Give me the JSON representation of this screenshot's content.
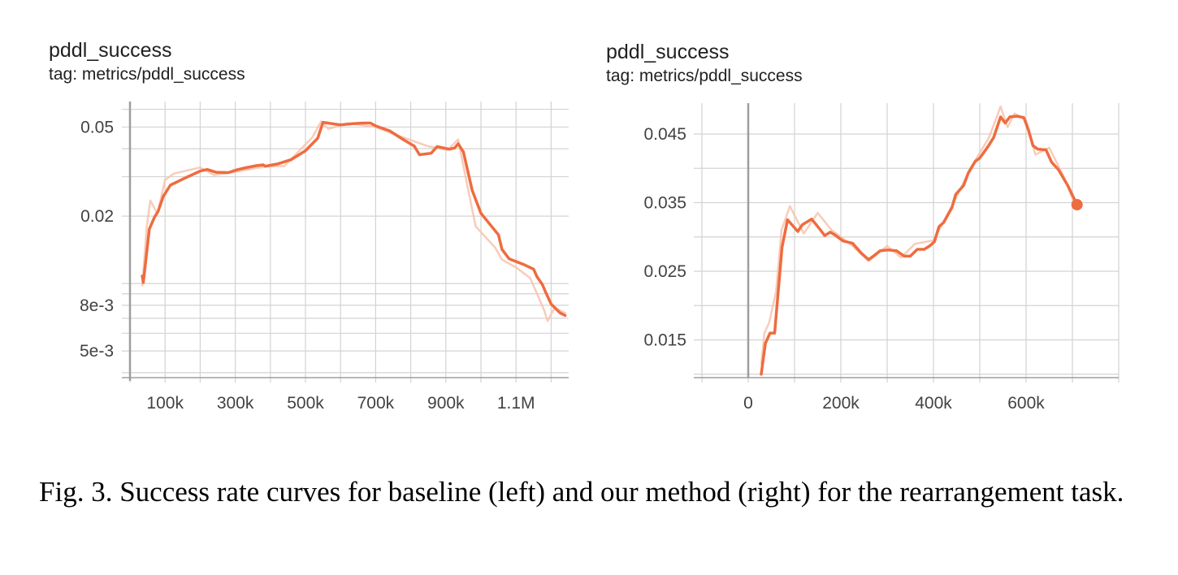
{
  "colors": {
    "line": "#ee6c3f",
    "line_raw": "#f7c3ad",
    "grid": "#d3d3d3",
    "axis": "#9e9e9e",
    "text": "#212121"
  },
  "caption": "Fig. 3.  Success rate curves for baseline (left) and our method (right) for the rearrangement task.",
  "chart_data": [
    {
      "type": "line",
      "title": "pddl_success",
      "subtitle": "tag: metrics/pddl_success",
      "xlabel": "",
      "ylabel": "",
      "y_scale": "log",
      "xlim": [
        0,
        1250000
      ],
      "ylim": [
        0.0038,
        0.065
      ],
      "x_ticks": [
        100000,
        300000,
        500000,
        700000,
        900000,
        1100000
      ],
      "x_tick_labels": [
        "100k",
        "300k",
        "500k",
        "700k",
        "900k",
        "1.1M"
      ],
      "y_ticks": [
        0.05,
        0.02,
        0.008,
        0.005
      ],
      "y_tick_labels": [
        "0.05",
        "0.02",
        "8e-3",
        "5e-3"
      ],
      "grid": true,
      "series": [
        {
          "role": "smoothed",
          "x": [
            35000,
            38000,
            55000,
            70000,
            80000,
            95000,
            115000,
            155000,
            200000,
            220000,
            245000,
            280000,
            305000,
            330000,
            360000,
            380000,
            385000,
            420000,
            460000,
            500000,
            535000,
            550000,
            600000,
            635000,
            665000,
            685000,
            700000,
            740000,
            775000,
            810000,
            825000,
            858000,
            875000,
            910000,
            925000,
            935000,
            950000,
            975000,
            1000000,
            1050000,
            1060000,
            1080000,
            1125000,
            1150000,
            1160000,
            1175000,
            1185000,
            1200000,
            1225000,
            1240000
          ],
          "y": [
            0.0108,
            0.0101,
            0.0175,
            0.0198,
            0.021,
            0.0245,
            0.0275,
            0.0295,
            0.0318,
            0.0323,
            0.0314,
            0.0313,
            0.0322,
            0.0329,
            0.0336,
            0.0339,
            0.0334,
            0.0342,
            0.0358,
            0.0392,
            0.0446,
            0.0525,
            0.0511,
            0.0518,
            0.0521,
            0.0521,
            0.0506,
            0.0481,
            0.0443,
            0.0411,
            0.0376,
            0.0382,
            0.0409,
            0.0398,
            0.0403,
            0.0421,
            0.0387,
            0.0261,
            0.0206,
            0.0165,
            0.0142,
            0.0129,
            0.0121,
            0.0116,
            0.0107,
            0.0099,
            0.0091,
            0.0081,
            0.0074,
            0.0072
          ]
        },
        {
          "role": "raw",
          "x": [
            35000,
            48000,
            58000,
            78000,
            100000,
            125000,
            200000,
            240000,
            300000,
            380000,
            440000,
            520000,
            545000,
            565000,
            620000,
            700000,
            760000,
            850000,
            905000,
            935000,
            960000,
            985000,
            1040000,
            1060000,
            1100000,
            1140000,
            1160000,
            1180000,
            1190000,
            1210000,
            1240000
          ],
          "y": [
            0.0098,
            0.018,
            0.0235,
            0.0205,
            0.029,
            0.031,
            0.033,
            0.0305,
            0.0315,
            0.0332,
            0.0335,
            0.045,
            0.053,
            0.049,
            0.052,
            0.05,
            0.046,
            0.041,
            0.0395,
            0.044,
            0.028,
            0.018,
            0.0145,
            0.0128,
            0.0118,
            0.0106,
            0.009,
            0.0076,
            0.0068,
            0.0078,
            0.0074
          ]
        }
      ]
    },
    {
      "type": "line",
      "title": "pddl_success",
      "subtitle": "tag: metrics/pddl_success",
      "xlabel": "",
      "ylabel": "",
      "y_scale": "linear",
      "xlim": [
        -100000,
        800000
      ],
      "ylim": [
        0.0095,
        0.0495
      ],
      "x_ticks": [
        0,
        200000,
        400000,
        600000
      ],
      "x_tick_labels": [
        "0",
        "200k",
        "400k",
        "600k"
      ],
      "y_ticks": [
        0.045,
        0.035,
        0.025,
        0.015
      ],
      "y_tick_labels": [
        "0.045",
        "0.035",
        "0.025",
        "0.015"
      ],
      "grid": true,
      "series": [
        {
          "role": "smoothed",
          "x": [
            28000,
            37000,
            47000,
            57000,
            73000,
            85000,
            107000,
            117000,
            137000,
            155000,
            165000,
            177000,
            187000,
            205000,
            225000,
            245000,
            260000,
            272000,
            285000,
            302000,
            320000,
            337000,
            350000,
            365000,
            380000,
            392000,
            402000,
            412000,
            422000,
            440000,
            448000,
            465000,
            475000,
            490000,
            500000,
            518000,
            530000,
            545000,
            555000,
            565000,
            580000,
            595000,
            605000,
            615000,
            625000,
            643000,
            655000,
            670000,
            690000,
            710000
          ],
          "y": [
            0.01,
            0.0145,
            0.016,
            0.016,
            0.0285,
            0.0325,
            0.0308,
            0.0318,
            0.0326,
            0.0311,
            0.0302,
            0.0307,
            0.0303,
            0.0294,
            0.0291,
            0.0276,
            0.0267,
            0.0273,
            0.028,
            0.0281,
            0.028,
            0.0272,
            0.0272,
            0.0282,
            0.0282,
            0.0287,
            0.0293,
            0.0315,
            0.0321,
            0.0343,
            0.0362,
            0.0375,
            0.0393,
            0.041,
            0.0415,
            0.0432,
            0.0445,
            0.0475,
            0.0466,
            0.0475,
            0.0476,
            0.0474,
            0.0456,
            0.0433,
            0.0428,
            0.0427,
            0.0409,
            0.0398,
            0.0375,
            0.0347
          ]
        },
        {
          "role": "raw",
          "x": [
            28000,
            35000,
            45000,
            60000,
            72000,
            90000,
            120000,
            150000,
            180000,
            220000,
            260000,
            300000,
            330000,
            360000,
            400000,
            440000,
            480000,
            520000,
            545000,
            560000,
            575000,
            600000,
            620000,
            650000,
            680000,
            710000
          ],
          "y": [
            0.0115,
            0.016,
            0.0175,
            0.022,
            0.031,
            0.0345,
            0.0305,
            0.0335,
            0.031,
            0.029,
            0.0265,
            0.0287,
            0.027,
            0.029,
            0.0295,
            0.0345,
            0.04,
            0.0445,
            0.049,
            0.046,
            0.048,
            0.047,
            0.042,
            0.043,
            0.039,
            0.034
          ]
        }
      ]
    }
  ]
}
